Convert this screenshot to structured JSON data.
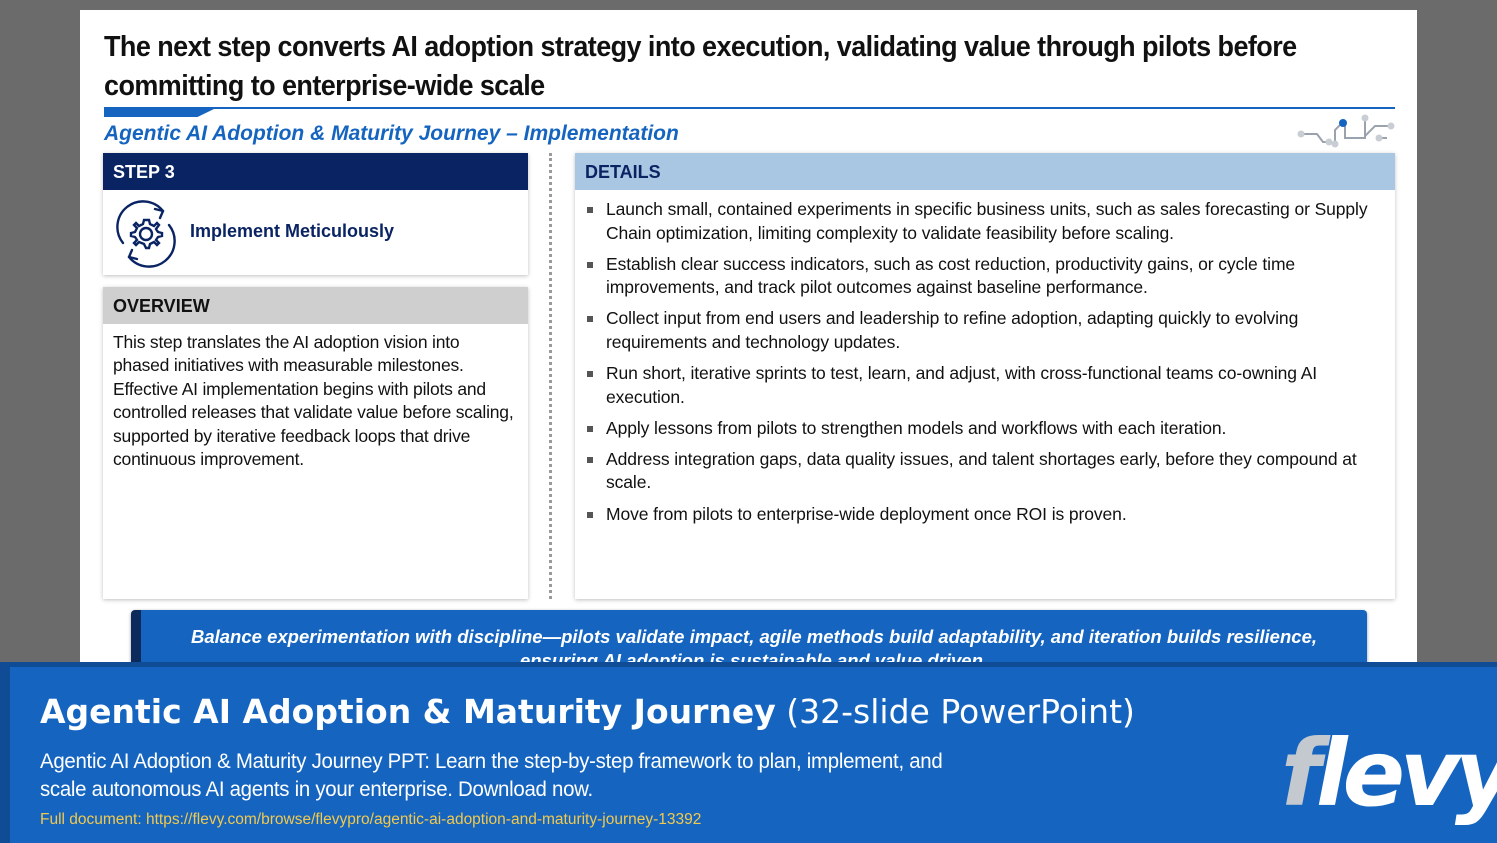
{
  "slide": {
    "title": "The next step converts AI adoption strategy into execution, validating value through pilots before committing to enterprise-wide scale",
    "subtitle": "Agentic AI Adoption & Maturity Journey – Implementation"
  },
  "step": {
    "header": "STEP 3",
    "label": "Implement Meticulously",
    "icon": "gear-cycle-icon"
  },
  "overview": {
    "header": "OVERVIEW",
    "text": "This step translates the AI adoption vision into phased initiatives with measurable milestones. Effective AI implementation begins with pilots and controlled releases that validate value before scaling, supported by iterative feedback loops that drive continuous improvement."
  },
  "details": {
    "header": "DETAILS",
    "items": [
      "Launch small, contained experiments in specific business units, such as sales forecasting or Supply Chain optimization, limiting complexity to validate feasibility before scaling.",
      "Establish clear success indicators, such as cost reduction, productivity gains, or cycle time improvements, and track pilot outcomes against baseline performance.",
      "Collect input from end users and leadership to refine adoption, adapting quickly to evolving requirements and technology updates.",
      "Run short, iterative sprints to test, learn, and adjust, with cross-functional teams co-owning AI execution.",
      "Apply lessons from pilots to strengthen models and workflows with each iteration.",
      "Address integration gaps, data quality issues, and talent shortages early, before they compound at scale.",
      "Move from pilots to enterprise-wide deployment once ROI is proven."
    ]
  },
  "banner": {
    "text": "Balance experimentation with discipline—pilots validate impact, agile methods build adaptability, and iteration builds resilience, ensuring AI adoption is sustainable and value driven."
  },
  "footer": {
    "title_bold": "Agentic AI Adoption & Maturity Journey",
    "title_rest": " (32-slide PowerPoint)",
    "description": "Agentic AI Adoption & Maturity Journey PPT: Learn the step-by-step framework to plan, implement, and scale autonomous AI agents in your enterprise. Download now.",
    "link": "Full document: https://flevy.com/browse/flevypro/agentic-ai-adoption-and-maturity-journey-13392",
    "logo_first": "f",
    "logo_rest": "levy"
  },
  "colors": {
    "brand_blue": "#1565c0",
    "navy": "#0a2463",
    "details_header": "#a9c6e3",
    "link_yellow": "#f2c94c"
  }
}
